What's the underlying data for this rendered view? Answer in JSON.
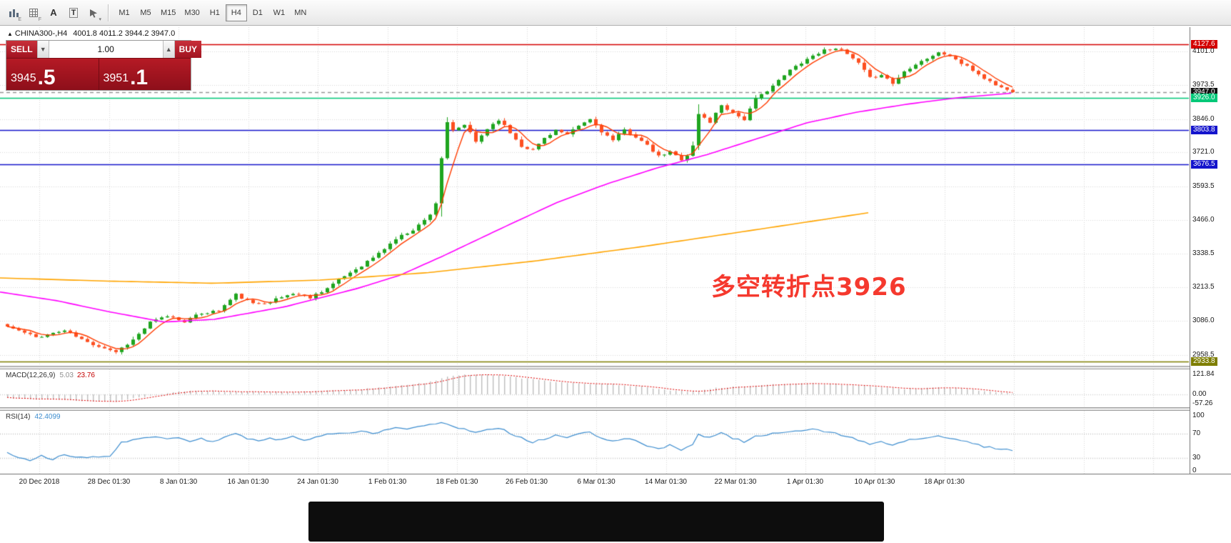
{
  "toolbar": {
    "icons": [
      {
        "name": "chart-bars-icon",
        "badge": "E"
      },
      {
        "name": "grid-icon",
        "badge": "F"
      },
      {
        "name": "font-icon",
        "label": "A"
      },
      {
        "name": "text-label-icon",
        "label": "T"
      },
      {
        "name": "draw-tools-icon",
        "badge": "▾"
      }
    ],
    "timeframes": [
      {
        "label": "M1",
        "active": false
      },
      {
        "label": "M5",
        "active": false
      },
      {
        "label": "M15",
        "active": false
      },
      {
        "label": "M30",
        "active": false
      },
      {
        "label": "H1",
        "active": false
      },
      {
        "label": "H4",
        "active": true
      },
      {
        "label": "D1",
        "active": false
      },
      {
        "label": "W1",
        "active": false
      },
      {
        "label": "MN",
        "active": false
      }
    ]
  },
  "chart_header": {
    "marker": "▲",
    "symbol": "CHINA300-,H4",
    "ohlc": "4001.8 4011.2 3944.2 3947.0"
  },
  "trade_panel": {
    "sell_label": "SELL",
    "buy_label": "BUY",
    "volume": "1.00",
    "volume_down": "▼",
    "volume_up": "▲",
    "sell_price": "3945",
    "sell_pip": ".5",
    "buy_price": "3951",
    "buy_pip": ".1"
  },
  "annotation": {
    "text": "多空转折点3926"
  },
  "price_axis": {
    "ticks": [
      {
        "value": "4127.6",
        "price": 4127.6,
        "style": "red"
      },
      {
        "value": "4101.0",
        "price": 4101.0,
        "style": "plain"
      },
      {
        "value": "3973.5",
        "price": 3973.5,
        "style": "plain"
      },
      {
        "value": "3947.0",
        "price": 3947.0,
        "style": "black"
      },
      {
        "value": "3926.0",
        "price": 3926.0,
        "style": "green"
      },
      {
        "value": "3846.0",
        "price": 3846.0,
        "style": "plain"
      },
      {
        "value": "3803.8",
        "price": 3803.8,
        "style": "blue"
      },
      {
        "value": "3721.0",
        "price": 3721.0,
        "style": "plain"
      },
      {
        "value": "3676.5",
        "price": 3676.5,
        "style": "blue"
      },
      {
        "value": "3593.5",
        "price": 3593.5,
        "style": "plain"
      },
      {
        "value": "3466.0",
        "price": 3466.0,
        "style": "plain"
      },
      {
        "value": "3338.5",
        "price": 3338.5,
        "style": "plain"
      },
      {
        "value": "3213.5",
        "price": 3213.5,
        "style": "plain"
      },
      {
        "value": "3086.0",
        "price": 3086.0,
        "style": "plain"
      },
      {
        "value": "2958.5",
        "price": 2958.5,
        "style": "plain"
      },
      {
        "value": "2933.8",
        "price": 2933.8,
        "style": "olive"
      }
    ]
  },
  "time_axis": {
    "labels": [
      "20 Dec 2018",
      "28 Dec 01:30",
      "8 Jan 01:30",
      "16 Jan 01:30",
      "24 Jan 01:30",
      "1 Feb 01:30",
      "18 Feb 01:30",
      "26 Feb 01:30",
      "6 Mar 01:30",
      "14 Mar 01:30",
      "22 Mar 01:30",
      "1 Apr 01:30",
      "10 Apr 01:30",
      "18 Apr 01:30"
    ]
  },
  "macd_panel": {
    "title": "MACD(12,26,9)",
    "value_main": "5.03",
    "value_signal": "23.76",
    "axis": [
      "121.84",
      "0.00",
      "-57.26"
    ]
  },
  "rsi_panel": {
    "title": "RSI(14)",
    "value": "42.4099",
    "axis": [
      "100",
      "70",
      "30",
      "0"
    ]
  },
  "chart_data": {
    "type": "candlestick",
    "symbol": "CHINA300-",
    "timeframe": "H4",
    "current_bar": {
      "open": 4001.8,
      "high": 4011.2,
      "low": 3944.2,
      "close": 3947.0
    },
    "bid": 3945.5,
    "ask": 3951.1,
    "levels": [
      {
        "price": 4127.6,
        "color": "#d40000",
        "style": "solid",
        "name": "resistance"
      },
      {
        "price": 3947.0,
        "color": "#969696",
        "style": "dashed",
        "name": "current-price"
      },
      {
        "price": 3926.0,
        "color": "#00c878",
        "style": "solid",
        "name": "pivot"
      },
      {
        "price": 3803.8,
        "color": "#1414cc",
        "style": "solid",
        "name": "support-1"
      },
      {
        "price": 3676.5,
        "color": "#1414cc",
        "style": "solid",
        "name": "support-2"
      },
      {
        "price": 2933.8,
        "color": "#7e7e00",
        "style": "solid",
        "name": "period-low"
      }
    ],
    "candle_count": 177,
    "up_color": "#1fa51f",
    "down_color": "#fd4f21",
    "close_anchors": [
      [
        0,
        3065
      ],
      [
        5,
        3025
      ],
      [
        10,
        3050
      ],
      [
        14,
        3005
      ],
      [
        17,
        2985
      ],
      [
        19,
        2970
      ],
      [
        22,
        3015
      ],
      [
        25,
        3080
      ],
      [
        28,
        3105
      ],
      [
        31,
        3085
      ],
      [
        34,
        3115
      ],
      [
        37,
        3125
      ],
      [
        40,
        3185
      ],
      [
        43,
        3150
      ],
      [
        46,
        3160
      ],
      [
        50,
        3190
      ],
      [
        53,
        3175
      ],
      [
        56,
        3210
      ],
      [
        59,
        3255
      ],
      [
        62,
        3295
      ],
      [
        65,
        3340
      ],
      [
        68,
        3395
      ],
      [
        71,
        3430
      ],
      [
        73,
        3465
      ],
      [
        74,
        3490
      ],
      [
        75,
        3530
      ],
      [
        76,
        3700
      ],
      [
        77,
        3830
      ],
      [
        78,
        3800
      ],
      [
        80,
        3825
      ],
      [
        82,
        3760
      ],
      [
        84,
        3810
      ],
      [
        86,
        3845
      ],
      [
        88,
        3795
      ],
      [
        90,
        3745
      ],
      [
        92,
        3730
      ],
      [
        94,
        3775
      ],
      [
        96,
        3805
      ],
      [
        98,
        3785
      ],
      [
        100,
        3820
      ],
      [
        102,
        3845
      ],
      [
        104,
        3800
      ],
      [
        106,
        3765
      ],
      [
        108,
        3805
      ],
      [
        110,
        3780
      ],
      [
        112,
        3745
      ],
      [
        114,
        3705
      ],
      [
        116,
        3722
      ],
      [
        118,
        3695
      ],
      [
        119,
        3710
      ],
      [
        120,
        3745
      ],
      [
        121,
        3865
      ],
      [
        123,
        3835
      ],
      [
        125,
        3900
      ],
      [
        127,
        3870
      ],
      [
        129,
        3845
      ],
      [
        131,
        3920
      ],
      [
        133,
        3955
      ],
      [
        135,
        3990
      ],
      [
        137,
        4030
      ],
      [
        139,
        4060
      ],
      [
        141,
        4085
      ],
      [
        143,
        4105
      ],
      [
        145,
        4115
      ],
      [
        147,
        4090
      ],
      [
        149,
        4055
      ],
      [
        151,
        4000
      ],
      [
        153,
        4015
      ],
      [
        155,
        3980
      ],
      [
        157,
        4025
      ],
      [
        159,
        4055
      ],
      [
        161,
        4075
      ],
      [
        163,
        4095
      ],
      [
        165,
        4085
      ],
      [
        167,
        4055
      ],
      [
        169,
        4030
      ],
      [
        171,
        4000
      ],
      [
        173,
        3975
      ],
      [
        175,
        3955
      ],
      [
        176,
        3947
      ]
    ],
    "ma_fast_color": "#ff3c00",
    "ma_mid_color": "#ff00ff",
    "ma_slow_color": "#ffa500",
    "rsi_color": "#3e8ed0",
    "ma_mid_anchors": [
      [
        0,
        3195
      ],
      [
        80,
        3162
      ],
      [
        150,
        3122
      ],
      [
        230,
        3082
      ],
      [
        300,
        3092
      ],
      [
        400,
        3140
      ],
      [
        500,
        3208
      ],
      [
        560,
        3258
      ],
      [
        620,
        3330
      ],
      [
        700,
        3432
      ],
      [
        780,
        3532
      ],
      [
        850,
        3602
      ],
      [
        920,
        3662
      ],
      [
        990,
        3712
      ],
      [
        1060,
        3772
      ],
      [
        1130,
        3832
      ],
      [
        1200,
        3872
      ],
      [
        1270,
        3902
      ],
      [
        1340,
        3926
      ],
      [
        1418,
        3944
      ]
    ],
    "ma_slow_anchors": [
      [
        0,
        3248
      ],
      [
        150,
        3236
      ],
      [
        300,
        3228
      ],
      [
        450,
        3240
      ],
      [
        600,
        3268
      ],
      [
        750,
        3312
      ],
      [
        900,
        3366
      ],
      [
        1050,
        3426
      ],
      [
        1220,
        3495
      ]
    ],
    "macd_anchors": [
      [
        0,
        -20
      ],
      [
        8,
        -32
      ],
      [
        14,
        -40
      ],
      [
        19,
        -42
      ],
      [
        23,
        -20
      ],
      [
        27,
        5
      ],
      [
        32,
        22
      ],
      [
        38,
        18
      ],
      [
        44,
        14
      ],
      [
        50,
        16
      ],
      [
        56,
        22
      ],
      [
        62,
        32
      ],
      [
        66,
        45
      ],
      [
        70,
        58
      ],
      [
        73,
        70
      ],
      [
        75,
        85
      ],
      [
        77,
        108
      ],
      [
        80,
        120
      ],
      [
        83,
        122
      ],
      [
        86,
        116
      ],
      [
        90,
        100
      ],
      [
        95,
        80
      ],
      [
        100,
        68
      ],
      [
        105,
        62
      ],
      [
        108,
        56
      ],
      [
        112,
        42
      ],
      [
        116,
        26
      ],
      [
        119,
        16
      ],
      [
        121,
        22
      ],
      [
        124,
        38
      ],
      [
        128,
        48
      ],
      [
        132,
        56
      ],
      [
        136,
        62
      ],
      [
        140,
        66
      ],
      [
        144,
        62
      ],
      [
        148,
        58
      ],
      [
        151,
        48
      ],
      [
        154,
        40
      ],
      [
        157,
        34
      ],
      [
        160,
        36
      ],
      [
        163,
        40
      ],
      [
        166,
        36
      ],
      [
        169,
        28
      ],
      [
        172,
        18
      ],
      [
        176,
        5
      ]
    ],
    "rsi_levels": [
      70,
      30
    ],
    "rsi_anchors": [
      [
        0,
        38
      ],
      [
        2,
        32
      ],
      [
        4,
        25
      ],
      [
        6,
        33
      ],
      [
        8,
        28
      ],
      [
        10,
        35
      ],
      [
        12,
        32
      ],
      [
        14,
        30
      ],
      [
        16,
        32
      ],
      [
        18,
        34
      ],
      [
        20,
        56
      ],
      [
        23,
        61
      ],
      [
        26,
        66
      ],
      [
        28,
        60
      ],
      [
        30,
        64
      ],
      [
        32,
        58
      ],
      [
        34,
        62
      ],
      [
        36,
        57
      ],
      [
        38,
        64
      ],
      [
        40,
        69
      ],
      [
        42,
        62
      ],
      [
        44,
        58
      ],
      [
        46,
        62
      ],
      [
        48,
        60
      ],
      [
        50,
        65
      ],
      [
        52,
        60
      ],
      [
        54,
        64
      ],
      [
        56,
        68
      ],
      [
        58,
        72
      ],
      [
        60,
        70
      ],
      [
        62,
        74
      ],
      [
        64,
        70
      ],
      [
        66,
        76
      ],
      [
        68,
        81
      ],
      [
        70,
        77
      ],
      [
        72,
        83
      ],
      [
        74,
        86
      ],
      [
        76,
        88
      ],
      [
        78,
        82
      ],
      [
        80,
        78
      ],
      [
        82,
        73
      ],
      [
        84,
        77
      ],
      [
        86,
        80
      ],
      [
        88,
        71
      ],
      [
        90,
        63
      ],
      [
        92,
        56
      ],
      [
        94,
        61
      ],
      [
        96,
        67
      ],
      [
        98,
        63
      ],
      [
        100,
        69
      ],
      [
        102,
        72
      ],
      [
        104,
        63
      ],
      [
        106,
        57
      ],
      [
        108,
        63
      ],
      [
        110,
        59
      ],
      [
        112,
        51
      ],
      [
        114,
        45
      ],
      [
        116,
        51
      ],
      [
        118,
        44
      ],
      [
        120,
        53
      ],
      [
        121,
        68
      ],
      [
        123,
        64
      ],
      [
        125,
        71
      ],
      [
        127,
        63
      ],
      [
        129,
        57
      ],
      [
        131,
        65
      ],
      [
        133,
        69
      ],
      [
        135,
        71
      ],
      [
        137,
        73
      ],
      [
        139,
        75
      ],
      [
        141,
        77
      ],
      [
        143,
        73
      ],
      [
        145,
        70
      ],
      [
        147,
        66
      ],
      [
        149,
        60
      ],
      [
        151,
        52
      ],
      [
        153,
        57
      ],
      [
        155,
        50
      ],
      [
        157,
        57
      ],
      [
        159,
        62
      ],
      [
        161,
        64
      ],
      [
        163,
        66
      ],
      [
        165,
        63
      ],
      [
        167,
        58
      ],
      [
        169,
        54
      ],
      [
        171,
        49
      ],
      [
        173,
        46
      ],
      [
        175,
        44
      ],
      [
        176,
        42.4
      ]
    ]
  }
}
